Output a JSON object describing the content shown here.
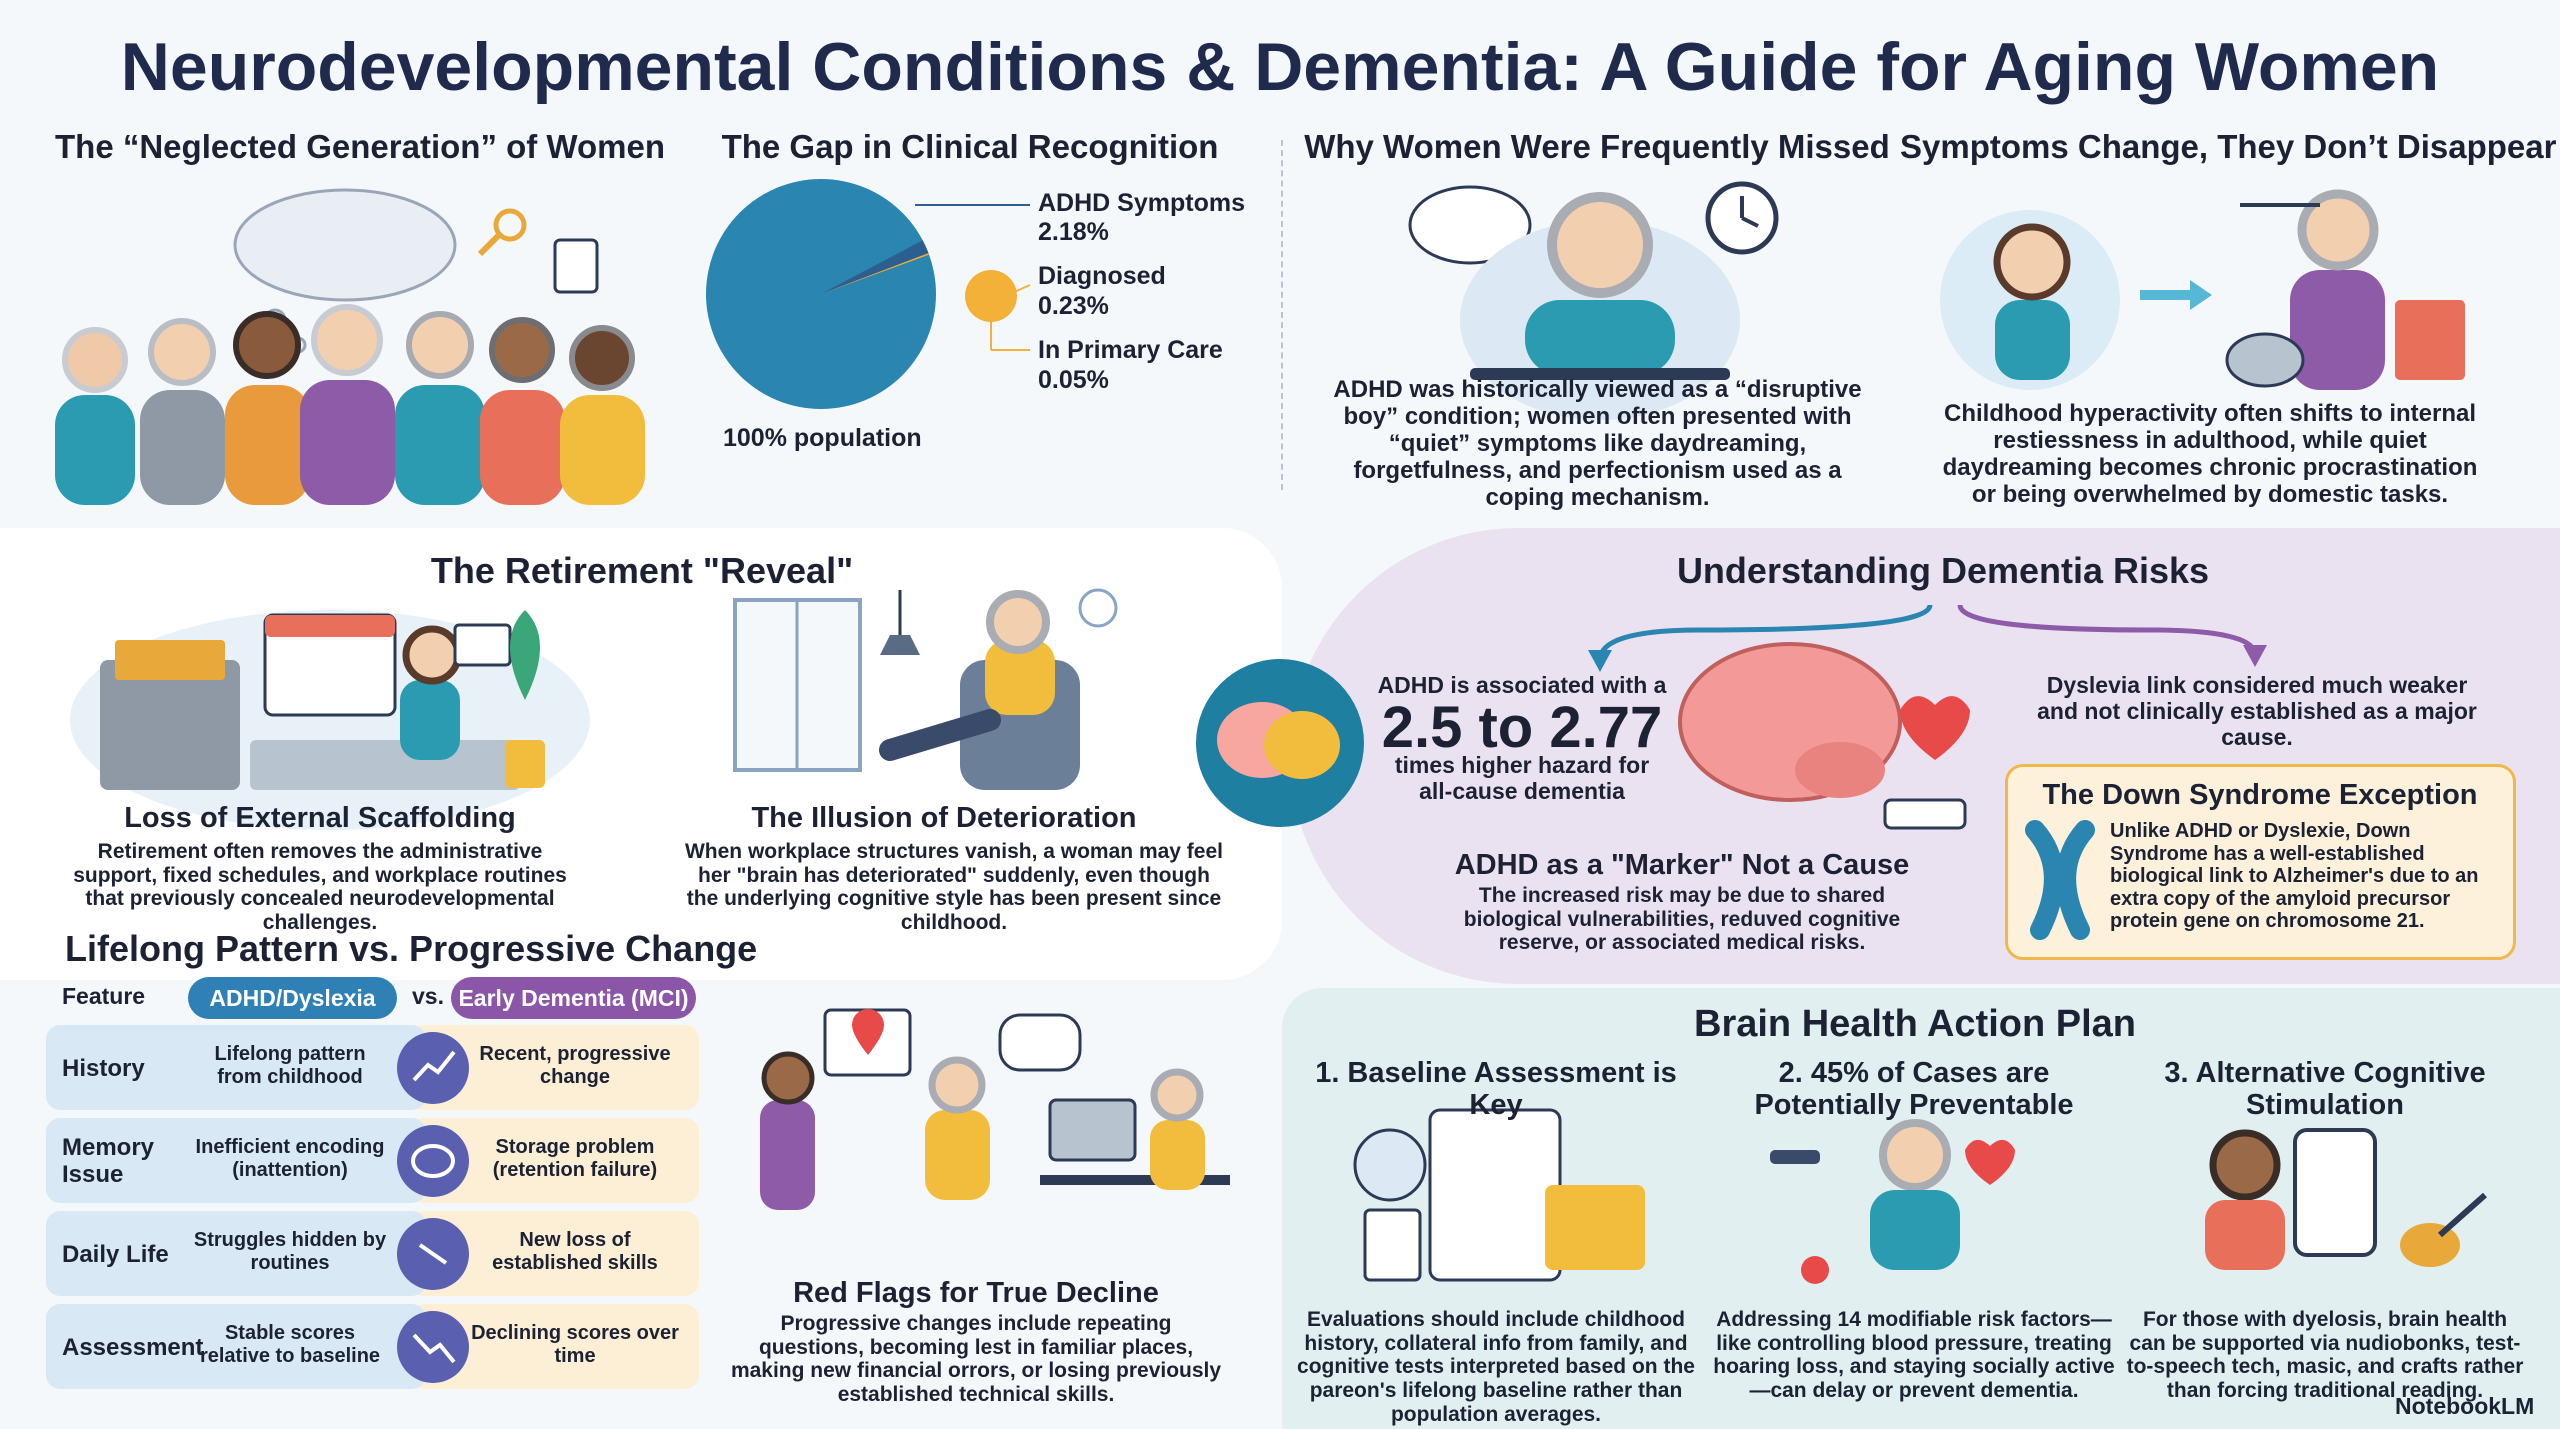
{
  "title": "Neurodevelopmental Conditions & Dementia: A Guide for Aging Women",
  "neglected": {
    "heading": "The “Neglected Generation” of Women"
  },
  "gap": {
    "heading": "The Gap in Clinical Recognition",
    "pie": {
      "total": 100,
      "total_label": "100% population",
      "total_color": "#2a86b0",
      "names": [
        "ADHD Symptoms",
        "Diagnosed",
        "In Primary Care"
      ],
      "values": [
        2.18,
        0.23,
        0.05
      ],
      "value_labels": [
        "2.18%",
        "0.23%",
        "0.05%"
      ],
      "colors": [
        "#2c5f8f",
        "#f4b13a",
        "#e8a030"
      ]
    }
  },
  "missed": {
    "heading": "Why Women Were Frequently Missed",
    "text": "ADHD was historically viewed as a “disruptive boy” condition; women often presented with “quiet” symptoms like daydreaming, forgetfulness, and perfectionism used as a coping mechanism."
  },
  "symptoms": {
    "heading": "Symptoms Change, They Don’t Disappear",
    "text": "Childhood hyperactivity often shifts to internal restiessness in adulthood, while quiet daydreaming becomes chronic procrastination or being overwhelmed by domestic tasks."
  },
  "retirement": {
    "heading": "The Retirement \"Reveal\"",
    "items": [
      {
        "title": "Loss of External Scaffolding",
        "text": "Retirement often removes the administrative support, fixed schedules, and workplace routines that previously concealed neurodevelopmental challenges."
      },
      {
        "title": "The Illusion of Deterioration",
        "text": "When workplace structures vanish, a woman may feel her \"brain has deteriorated\" suddenly, even though the underlying cognitive style has been present since childhood."
      }
    ]
  },
  "dementia": {
    "heading": "Understanding Dementia Risks",
    "adhd_pre": "ADHD is associated with a",
    "adhd_big": "2.5 to 2.77",
    "adhd_post": "times higher hazard for all-cause dementia",
    "dyslexia": "Dyslevia link considered much weaker and not clinically established as a major cause.",
    "marker_title": "ADHD as a \"Marker\" Not a Cause",
    "marker_text": "The increased risk may be due to shared biological vulnerabilities, reduved cognitive reserve, or associated medical risks.",
    "down_title": "The Down Syndrome Exception",
    "down_text": "Unlike ADHD or Dyslexie, Down Syndrome has a well-established biological link to Alzheimer's due to an extra copy of the amyloid precursor protein gene on chromosome 21."
  },
  "lifelong": {
    "heading": "Lifelong Pattern vs. Progressive Change",
    "headers": [
      "Feature",
      "ADHD/Dyslexia",
      "vs.",
      "Early Dementia (MCI)"
    ],
    "rows": [
      [
        "History",
        "Lifelong pattern from childhood",
        "Recent, progressive change"
      ],
      [
        "Memory Issue",
        "Inefficient encoding (inattention)",
        "Storage problem (retention failure)"
      ],
      [
        "Daily Life",
        "Struggles hidden by routines",
        "New loss of established skills"
      ],
      [
        "Assessment",
        "Stable scores relative to baseline",
        "Declining scores over time"
      ]
    ]
  },
  "red_flags": {
    "title": "Red Flags for True Decline",
    "text": "Progressive changes include repeating questions, becoming lest in familiar places, making new financial orrors, or losing previously established technical skills."
  },
  "action": {
    "heading": "Brain Health Action Plan",
    "steps": [
      {
        "title": "1. Baseline Assessment is Key",
        "text": "Evaluations should include childhood history, collateral info from family, and cognitive tests interpreted based on the pareon's lifelong baseline rather than population averages."
      },
      {
        "title": "2. 45% of Cases are Potentially Preventable",
        "text": "Addressing 14 modifiable risk factors—like controlling blood pressure, treating hoaring loss, and staying socially active—can delay or prevent dementia."
      },
      {
        "title": "3. Alternative Cognitive Stimulation",
        "text": "For those with dyelosis, brain health can be supported via nudiobonks, test-to-speech tech, masic, and crafts rather than forcing traditional reading."
      }
    ]
  },
  "brand": "NotebookLM"
}
